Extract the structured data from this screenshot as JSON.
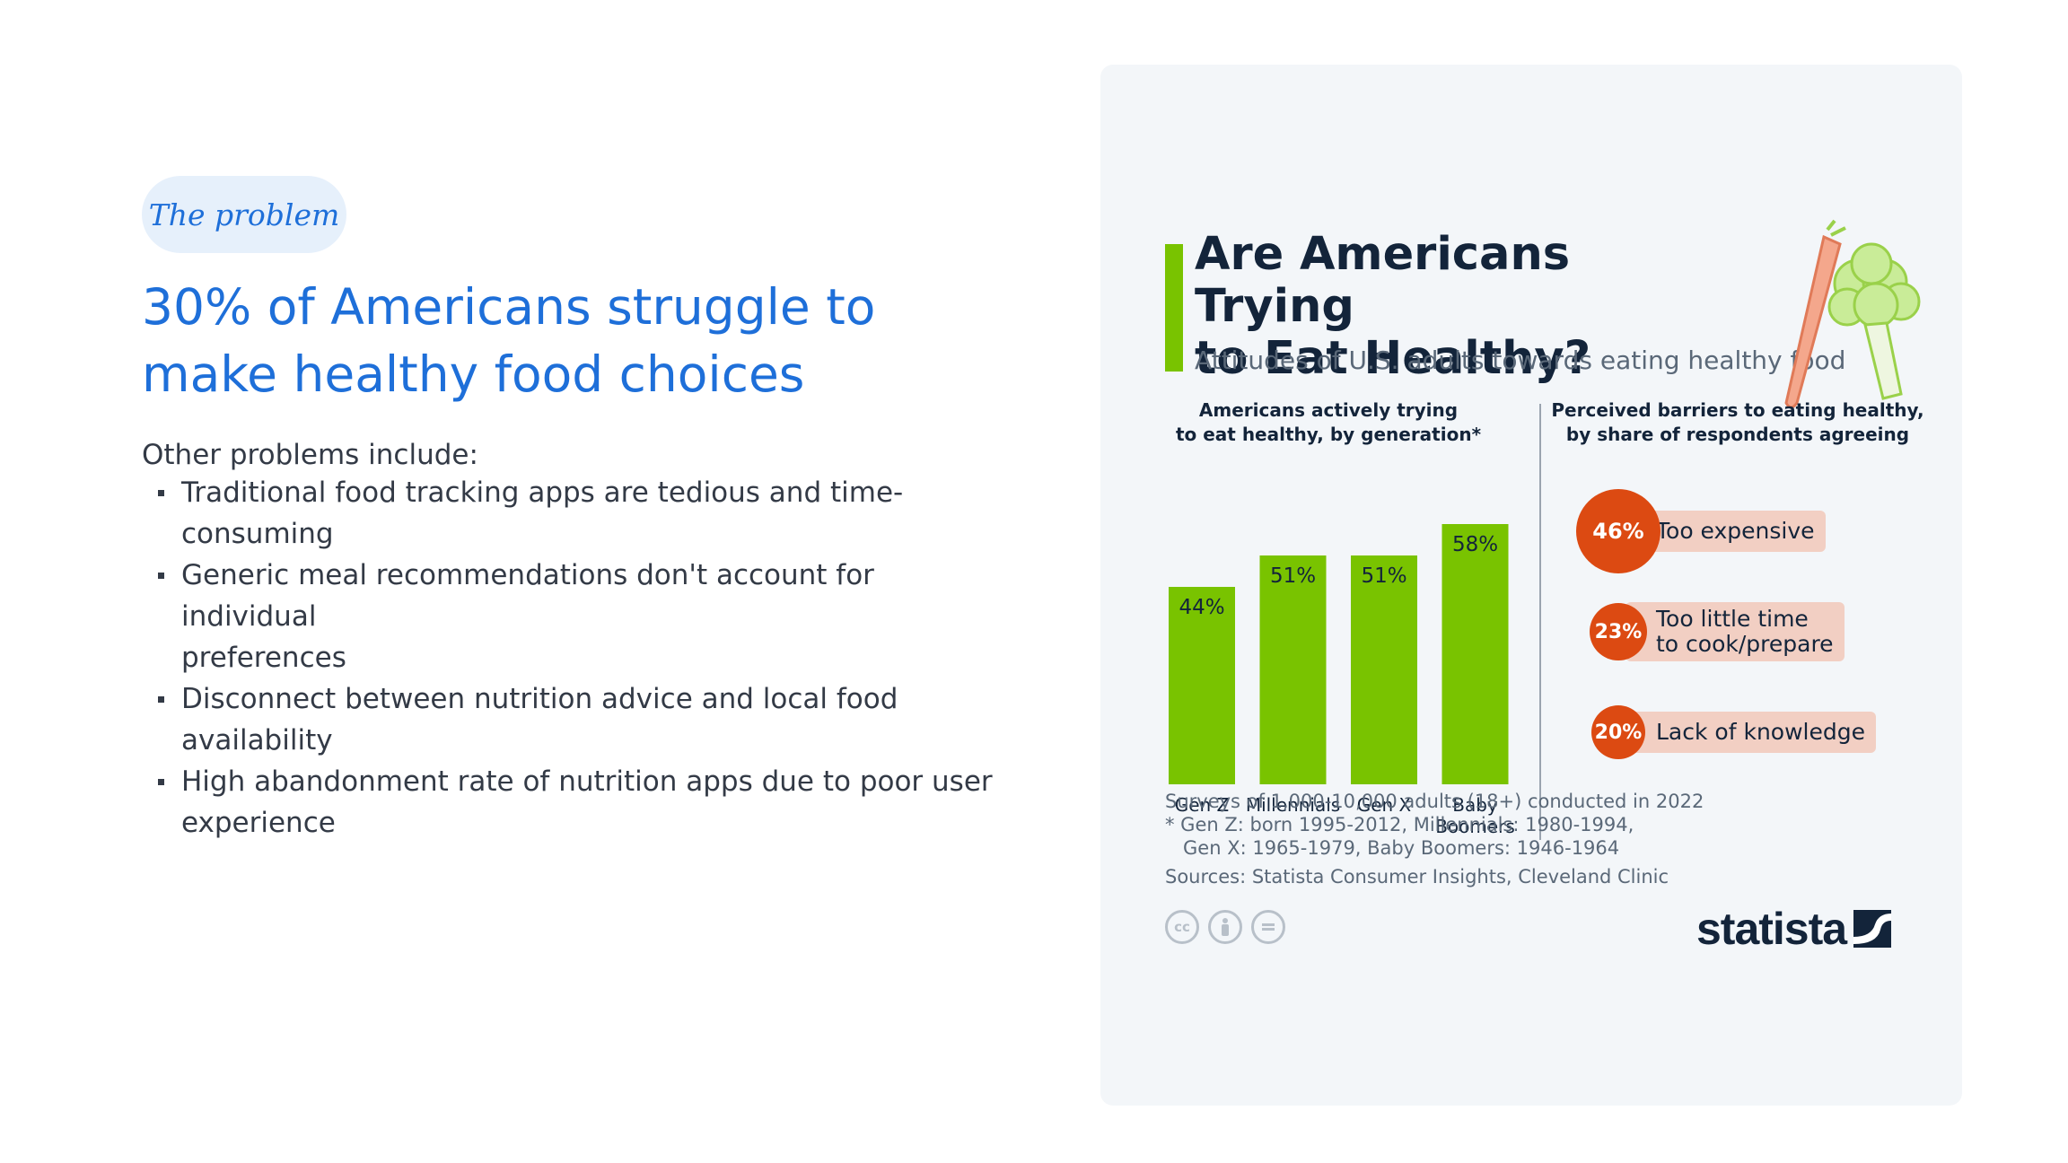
{
  "slide": {
    "tag": "The problem",
    "headline_lines": [
      "30% of Americans struggle to",
      "make healthy food choices"
    ],
    "intro": "Other problems include:",
    "problems": [
      [
        "Traditional food tracking apps are tedious and time-",
        "consuming"
      ],
      [
        "Generic meal recommendations don't account for individual",
        "preferences"
      ],
      [
        "Disconnect between nutrition advice and local food",
        "availability"
      ],
      [
        "High abandonment rate of nutrition apps due to poor user",
        "experience"
      ]
    ]
  },
  "infographic": {
    "title_lines": [
      "Are Americans Trying",
      "to Eat Healthy?"
    ],
    "subtitle": "Attitudes of U.S. adults towards eating healthy food",
    "left_panel_title": [
      "Americans actively trying",
      "to eat healthy, by generation*"
    ],
    "right_panel_title": [
      "Perceived barriers to eating healthy,",
      "by share of respondents agreeing"
    ],
    "notes": [
      "Surveys of 1,000-10,000 adults (18+) conducted in 2022",
      "* Gen Z: born 1995-2012, Millennials: 1980-1994,",
      "   Gen X: 1965-1979, Baby Boomers: 1946-1964"
    ],
    "sources": "Sources: Statista Consumer Insights, Cleveland Clinic",
    "license_icons": [
      "cc",
      "by",
      "nd"
    ],
    "brand": "statista",
    "colors": {
      "bar": "#79c300",
      "barrier_circle": "#dc4a12",
      "barrier_label_bg": "#f2cfc3",
      "title": "#13243a",
      "headline": "#1e6fd9"
    }
  },
  "chart_data": [
    {
      "type": "bar",
      "title": "Americans actively trying to eat healthy, by generation*",
      "categories": [
        [
          "Gen Z"
        ],
        [
          "Millennials"
        ],
        [
          "Gen X"
        ],
        [
          "Baby",
          "Boomers"
        ]
      ],
      "values": [
        44,
        51,
        51,
        58
      ],
      "value_labels": [
        "44%",
        "51%",
        "51%",
        "58%"
      ],
      "unit": "%",
      "ylim": [
        0,
        60
      ],
      "grid": false
    },
    {
      "type": "bubble-list",
      "title": "Perceived barriers to eating healthy, by share of respondents agreeing",
      "items": [
        {
          "value": 46,
          "value_label": "46%",
          "label_lines": [
            "Too expensive"
          ]
        },
        {
          "value": 23,
          "value_label": "23%",
          "label_lines": [
            "Too little time",
            "to cook/prepare"
          ]
        },
        {
          "value": 20,
          "value_label": "20%",
          "label_lines": [
            "Lack of knowledge"
          ]
        }
      ],
      "unit": "%"
    }
  ]
}
